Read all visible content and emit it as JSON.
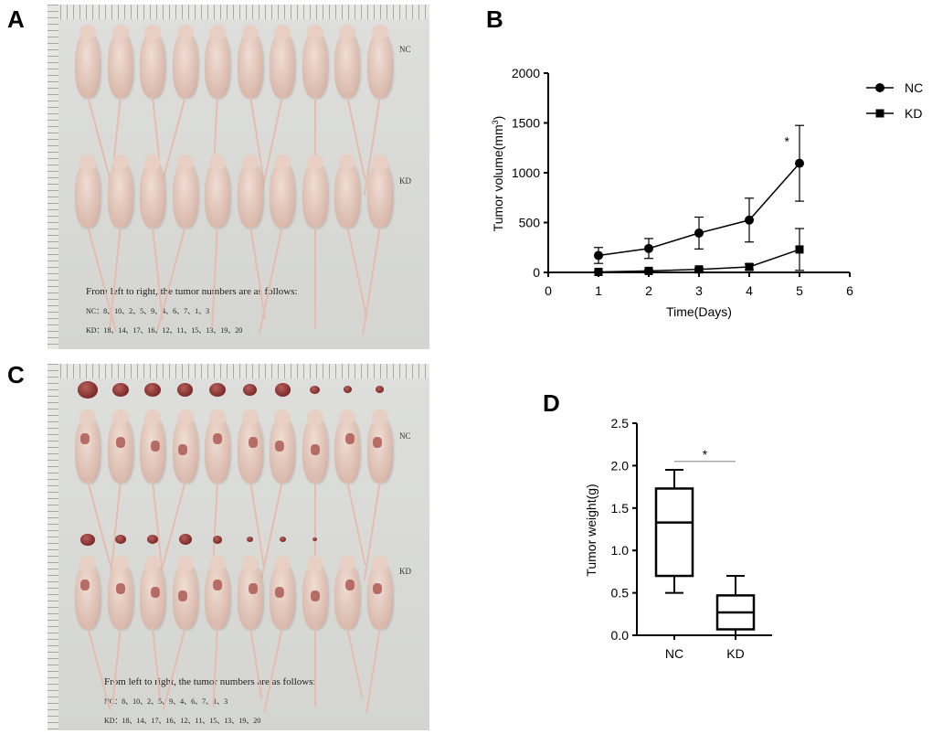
{
  "panels": {
    "a": "A",
    "b": "B",
    "c": "C",
    "d": "D"
  },
  "photo_a": {
    "row1_label": "NC",
    "row2_label": "KD",
    "caption_line1": "From left to right, the tumor numbers are as follows:",
    "caption_line2": "NC：8、10、2、5、9、4、6、7、1、3",
    "caption_line3": "KD：18、14、17、16、12、11、15、13、19、20"
  },
  "photo_c": {
    "row1_label": "NC",
    "row2_label": "KD",
    "caption_line1": "From left to right, the tumor numbers are as follows:",
    "caption_line2": "NC：8、10、2、5、9、4、6、7、1、3",
    "caption_line3": "KD：18、14、17、16、12、11、15、13、19、20"
  },
  "chart_data": [
    {
      "type": "line",
      "panel": "B",
      "title": "",
      "xlabel": "Time(Days)",
      "ylabel": "Tumor volume(mm³)",
      "ylabel_base": "Tumor volume(mm",
      "ylabel_sup": "3",
      "ylabel_close": ")",
      "xlim": [
        0,
        6
      ],
      "ylim": [
        0,
        2000
      ],
      "xticks": [
        0,
        1,
        2,
        3,
        4,
        5,
        6
      ],
      "yticks": [
        0,
        500,
        1000,
        1500,
        2000
      ],
      "legend_position": "top-right",
      "series": [
        {
          "name": "NC",
          "marker": "circle",
          "x": [
            1,
            2,
            3,
            4,
            5
          ],
          "values": [
            170,
            240,
            395,
            525,
            1095
          ],
          "errors": [
            80,
            100,
            160,
            220,
            380
          ]
        },
        {
          "name": "KD",
          "marker": "square",
          "x": [
            1,
            2,
            3,
            4,
            5
          ],
          "values": [
            5,
            15,
            30,
            55,
            230
          ],
          "errors": [
            5,
            10,
            15,
            30,
            210
          ]
        }
      ],
      "annotations": [
        {
          "text": "*",
          "x": 4.75,
          "y": 1270
        }
      ]
    },
    {
      "type": "box",
      "panel": "D",
      "title": "",
      "xlabel": "",
      "ylabel": "Tumor weight(g)",
      "ylim": [
        0,
        2.5
      ],
      "yticks": [
        "0.0",
        "0.5",
        "1.0",
        "1.5",
        "2.0",
        "2.5"
      ],
      "categories": [
        "NC",
        "KD"
      ],
      "boxes": [
        {
          "name": "NC",
          "min": 0.5,
          "q1": 0.7,
          "median": 1.33,
          "q3": 1.73,
          "max": 1.95
        },
        {
          "name": "KD",
          "min": 0.0,
          "q1": 0.07,
          "median": 0.27,
          "q3": 0.47,
          "max": 0.7
        }
      ],
      "significance": {
        "text": "*",
        "between": [
          "NC",
          "KD"
        ],
        "y": 2.05
      }
    }
  ]
}
